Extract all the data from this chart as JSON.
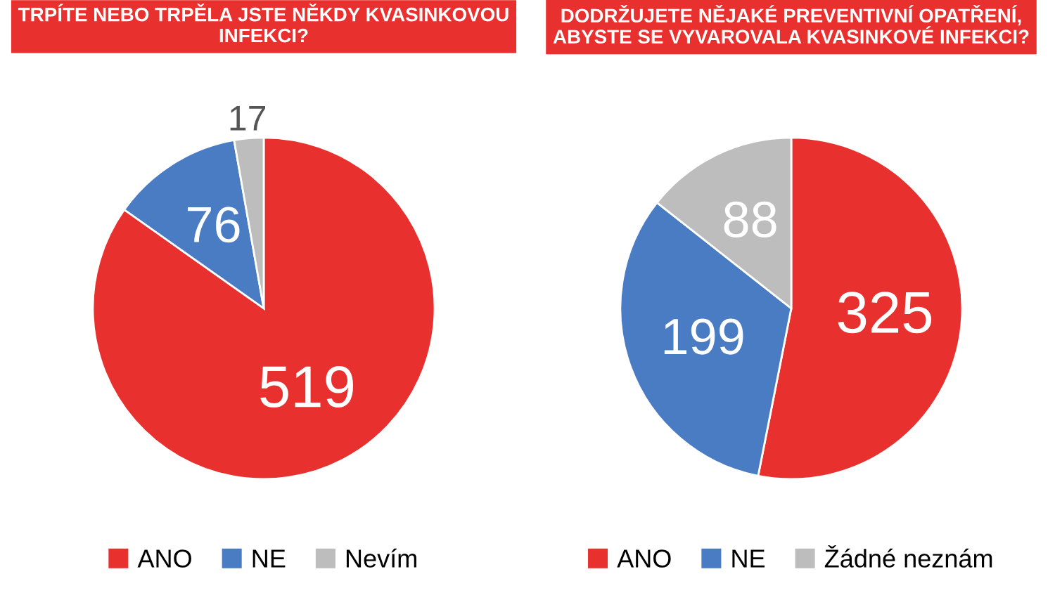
{
  "chart_data": [
    {
      "type": "pie",
      "title": "TRPÍTE NEBO TRPĚLA JSTE NĚKDY KVASINKOVOU INFEKCI?",
      "categories": [
        "ANO",
        "NE",
        "Nevím"
      ],
      "values": [
        519,
        76,
        17
      ],
      "colors": [
        "#e8312f",
        "#4a7cc4",
        "#bdbdbd"
      ],
      "data_labels": true,
      "legend": "bottom"
    },
    {
      "type": "pie",
      "title": "DODRŽUJETE NĚJAKÉ PREVENTIVNÍ OPATŘENÍ, ABYSTE SE VYVAROVALA KVASINKOVÉ INFEKCI?",
      "categories": [
        "ANO",
        "NE",
        "Žádné neznám"
      ],
      "values": [
        325,
        199,
        88
      ],
      "colors": [
        "#e8312f",
        "#4a7cc4",
        "#bdbdbd"
      ],
      "data_labels": true,
      "legend": "bottom"
    }
  ]
}
